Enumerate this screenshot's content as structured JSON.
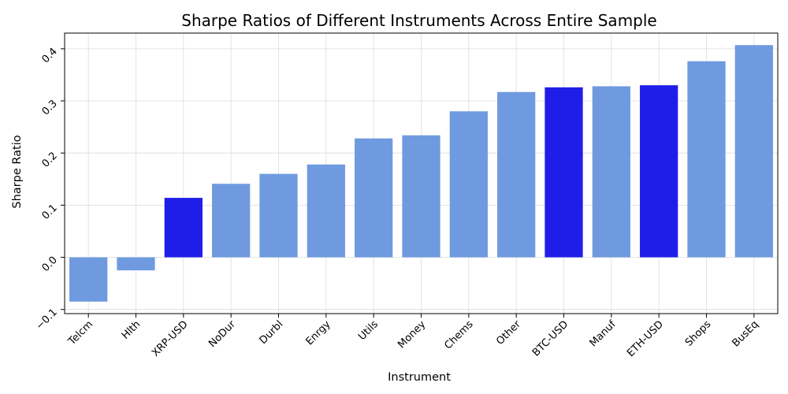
{
  "chart_data": {
    "type": "bar",
    "title": "Sharpe Ratios of Different Instruments Across Entire Sample",
    "xlabel": "Instrument",
    "ylabel": "Sharpe Ratio",
    "ylim": [
      -0.108,
      0.43
    ],
    "yticks": [
      -0.1,
      0.0,
      0.1,
      0.2,
      0.3,
      0.4
    ],
    "ytick_labels": [
      "−0.1",
      "0.0",
      "0.1",
      "0.2",
      "0.3",
      "0.4"
    ],
    "grid": true,
    "categories": [
      "Telcm",
      "Hlth",
      "XRP-USD",
      "NoDur",
      "Durbl",
      "Enrgy",
      "Utils",
      "Money",
      "Chems",
      "Other",
      "BTC-USD",
      "Manuf",
      "ETH-USD",
      "Shops",
      "BusEq"
    ],
    "values": [
      -0.085,
      -0.025,
      0.114,
      0.141,
      0.16,
      0.178,
      0.228,
      0.234,
      0.28,
      0.317,
      0.326,
      0.328,
      0.33,
      0.376,
      0.407
    ],
    "bar_colors": [
      "#6f9ae0",
      "#6f9ae0",
      "#1f1ee8",
      "#6f9ae0",
      "#6f9ae0",
      "#6f9ae0",
      "#6f9ae0",
      "#6f9ae0",
      "#6f9ae0",
      "#6f9ae0",
      "#1f1ee8",
      "#6f9ae0",
      "#1f1ee8",
      "#6f9ae0",
      "#6f9ae0"
    ]
  }
}
